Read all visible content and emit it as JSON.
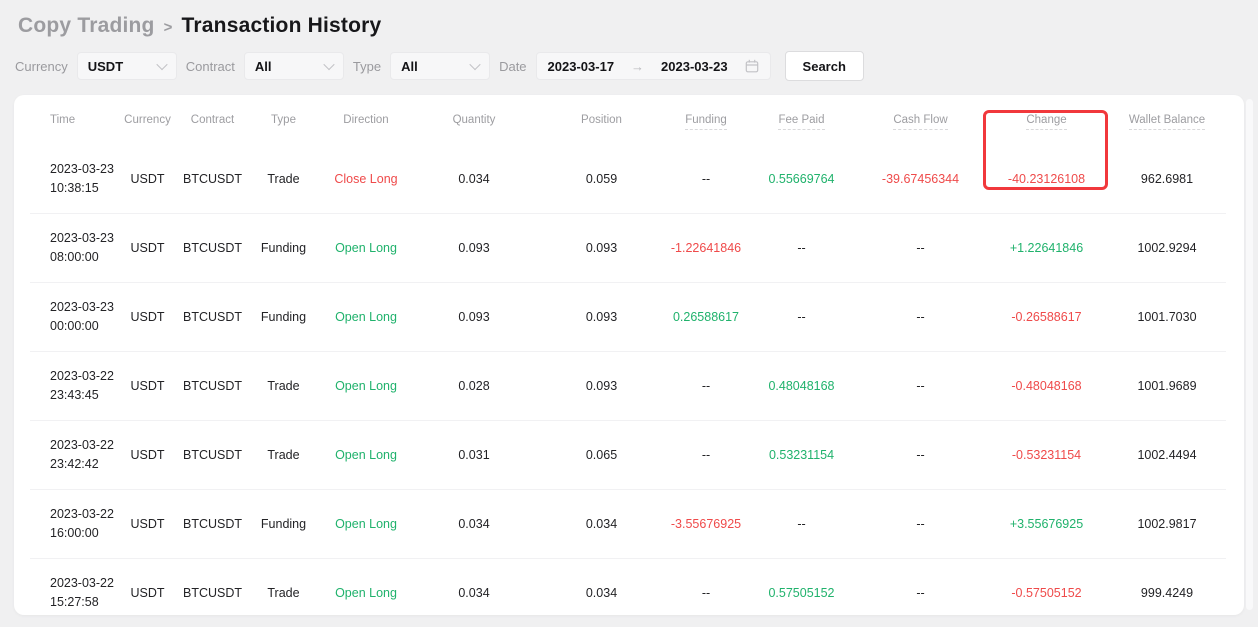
{
  "breadcrumb": {
    "parent": "Copy Trading",
    "separator": ">",
    "current": "Transaction History"
  },
  "filters": {
    "currency": {
      "label": "Currency",
      "value": "USDT"
    },
    "contract": {
      "label": "Contract",
      "value": "All"
    },
    "type": {
      "label": "Type",
      "value": "All"
    },
    "date": {
      "label": "Date",
      "start": "2023-03-17",
      "arrow": "→",
      "end": "2023-03-23"
    },
    "search_label": "Search"
  },
  "colors": {
    "positive": "#20b26c",
    "negative": "#ef4a4a",
    "highlight_box": "#f1383c"
  },
  "table": {
    "columns": [
      {
        "label": "Time",
        "underline": false
      },
      {
        "label": "Currency",
        "underline": false
      },
      {
        "label": "Contract",
        "underline": false
      },
      {
        "label": "Type",
        "underline": false
      },
      {
        "label": "Direction",
        "underline": false
      },
      {
        "label": "Quantity",
        "underline": false
      },
      {
        "label": "Position",
        "underline": false
      },
      {
        "label": "Funding",
        "underline": true
      },
      {
        "label": "Fee Paid",
        "underline": true
      },
      {
        "label": "Cash Flow",
        "underline": true
      },
      {
        "label": "Change",
        "underline": true
      },
      {
        "label": "Wallet Balance",
        "underline": true
      }
    ],
    "highlighted_column": "Change",
    "rows": [
      {
        "date": "2023-03-23",
        "time": "10:38:15",
        "currency": "USDT",
        "contract": "BTCUSDT",
        "type": "Trade",
        "direction": "Close Long",
        "quantity": "0.034",
        "position": "0.059",
        "funding": "--",
        "fee_paid": "0.55669764",
        "cash_flow": "-39.67456344",
        "change": "-40.23126108",
        "wallet_balance": "962.6981",
        "colors": {
          "direction": "negative",
          "fee_paid": "positive",
          "cash_flow": "negative",
          "change": "negative"
        }
      },
      {
        "date": "2023-03-23",
        "time": "08:00:00",
        "currency": "USDT",
        "contract": "BTCUSDT",
        "type": "Funding",
        "direction": "Open Long",
        "quantity": "0.093",
        "position": "0.093",
        "funding": "-1.22641846",
        "fee_paid": "--",
        "cash_flow": "--",
        "change": "+1.22641846",
        "wallet_balance": "1002.9294",
        "colors": {
          "direction": "positive",
          "funding": "negative",
          "change": "positive"
        }
      },
      {
        "date": "2023-03-23",
        "time": "00:00:00",
        "currency": "USDT",
        "contract": "BTCUSDT",
        "type": "Funding",
        "direction": "Open Long",
        "quantity": "0.093",
        "position": "0.093",
        "funding": "0.26588617",
        "fee_paid": "--",
        "cash_flow": "--",
        "change": "-0.26588617",
        "wallet_balance": "1001.7030",
        "colors": {
          "direction": "positive",
          "funding": "positive",
          "change": "negative"
        }
      },
      {
        "date": "2023-03-22",
        "time": "23:43:45",
        "currency": "USDT",
        "contract": "BTCUSDT",
        "type": "Trade",
        "direction": "Open Long",
        "quantity": "0.028",
        "position": "0.093",
        "funding": "--",
        "fee_paid": "0.48048168",
        "cash_flow": "--",
        "change": "-0.48048168",
        "wallet_balance": "1001.9689",
        "colors": {
          "direction": "positive",
          "fee_paid": "positive",
          "change": "negative"
        }
      },
      {
        "date": "2023-03-22",
        "time": "23:42:42",
        "currency": "USDT",
        "contract": "BTCUSDT",
        "type": "Trade",
        "direction": "Open Long",
        "quantity": "0.031",
        "position": "0.065",
        "funding": "--",
        "fee_paid": "0.53231154",
        "cash_flow": "--",
        "change": "-0.53231154",
        "wallet_balance": "1002.4494",
        "colors": {
          "direction": "positive",
          "fee_paid": "positive",
          "change": "negative"
        }
      },
      {
        "date": "2023-03-22",
        "time": "16:00:00",
        "currency": "USDT",
        "contract": "BTCUSDT",
        "type": "Funding",
        "direction": "Open Long",
        "quantity": "0.034",
        "position": "0.034",
        "funding": "-3.55676925",
        "fee_paid": "--",
        "cash_flow": "--",
        "change": "+3.55676925",
        "wallet_balance": "1002.9817",
        "colors": {
          "direction": "positive",
          "funding": "negative",
          "change": "positive"
        }
      },
      {
        "date": "2023-03-22",
        "time": "15:27:58",
        "currency": "USDT",
        "contract": "BTCUSDT",
        "type": "Trade",
        "direction": "Open Long",
        "quantity": "0.034",
        "position": "0.034",
        "funding": "--",
        "fee_paid": "0.57505152",
        "cash_flow": "--",
        "change": "-0.57505152",
        "wallet_balance": "999.4249",
        "colors": {
          "direction": "positive",
          "fee_paid": "positive",
          "change": "negative"
        }
      }
    ]
  }
}
